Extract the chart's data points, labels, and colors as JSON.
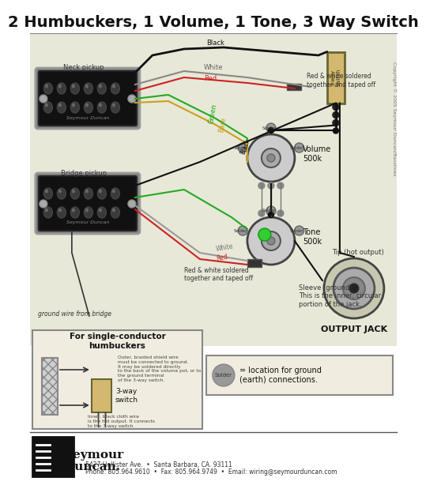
{
  "title": "2 Humbuckers, 1 Volume, 1 Tone, 3 Way Switch",
  "bg_color": "#ffffff",
  "footer_line1": "5427 Hollister Ave.  •  Santa Barbara, CA. 93111",
  "footer_line2": "Phone: 805.964.9610  •  Fax: 805.964.9749  •  Email: wiring@seymourduncan.com",
  "copyright": "Copyright © 2005 Seymour Duncan/Basslines",
  "neck_pickup_label": "Neck pickup",
  "bridge_pickup_label": "Bridge pickup",
  "volume_label": "Volume\n500k",
  "tone_label": "Tone\n500k",
  "output_label": "OUTPUT JACK",
  "solder_legend": "= location for ground\n(earth) connections.",
  "inset_title": "For single-conductor\nhumbuckers",
  "inset_text1": "Outer, braided shield wire\nmust be connected to ground.\nIt may be soldered directly\nto the back of the volume pot, or to\nthe ground terminal\nof the 3-way switch.",
  "inset_text2": "3-way\nswitch",
  "inset_text3": "Inner, black cloth wire\nis the hot output. It connects\nto the 3-way switch",
  "sleeve_text": "Sleeve (ground).\nThis is the inner, circular\nportion of the jack.",
  "tip_text": "Tip (hot output)",
  "rw_text_top": "Red & white soldered\ntogether and taped off",
  "rw_text_bot": "Red & white soldered\ntogether and taped off",
  "ground_text": "ground wire from bridge",
  "black_lbl": "Black",
  "white_lbl": "White",
  "red_lbl": "Red",
  "green_lbl": "Green",
  "bare_lbl": "Bare",
  "solder_lbl": "Solder",
  "w_black": "#111111",
  "w_white": "#cccccc",
  "w_red": "#cc2222",
  "w_green": "#22aa22",
  "w_bare": "#c8a020",
  "pickup_body": "#111111",
  "pickup_edge": "#333333",
  "pickup_pole": "#555555",
  "pickup_pole_inner": "#888888",
  "pot_body": "#cccccc",
  "pot_edge": "#444444",
  "pot_center": "#999999",
  "switch_body": "#d4b870",
  "switch_edge": "#666633",
  "jack_body": "#c8c8b0",
  "jack_edge": "#444444",
  "solder_dot": "#999999",
  "green_dot": "#33cc33",
  "diagram_bg": "#e8e8d8"
}
